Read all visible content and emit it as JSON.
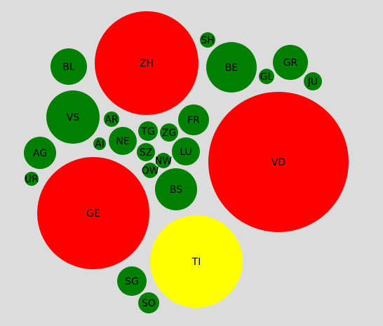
{
  "chart_data": {
    "type": "bubble",
    "title": "",
    "legend": "none",
    "status_colors": {
      "red": "#ff0000",
      "green": "#008000",
      "yellow": "#ffff00"
    },
    "bubbles": [
      {
        "label": "ZH",
        "size": 1,
        "status": "red"
      },
      {
        "label": "VD",
        "size": 1,
        "status": "red"
      },
      {
        "label": "GE",
        "size": 1,
        "status": "red"
      },
      {
        "label": "TI",
        "size": 1,
        "status": "yellow"
      },
      {
        "label": "BE",
        "size": 1,
        "status": "green"
      },
      {
        "label": "BL",
        "size": 1,
        "status": "green"
      },
      {
        "label": "SH",
        "size": 1,
        "status": "green"
      },
      {
        "label": "GR",
        "size": 1,
        "status": "green"
      },
      {
        "label": "GL",
        "size": 1,
        "status": "green"
      },
      {
        "label": "JU",
        "size": 1,
        "status": "green"
      },
      {
        "label": "VS",
        "size": 1,
        "status": "green"
      },
      {
        "label": "AR",
        "size": 1,
        "status": "green"
      },
      {
        "label": "FR",
        "size": 1,
        "status": "green"
      },
      {
        "label": "TG",
        "size": 1,
        "status": "green"
      },
      {
        "label": "ZG",
        "size": 1,
        "status": "green"
      },
      {
        "label": "NE",
        "size": 1,
        "status": "green"
      },
      {
        "label": "AI",
        "size": 1,
        "status": "green"
      },
      {
        "label": "AG",
        "size": 1,
        "status": "green"
      },
      {
        "label": "SZ",
        "size": 1,
        "status": "green"
      },
      {
        "label": "LU",
        "size": 1,
        "status": "green"
      },
      {
        "label": "NW",
        "size": 1,
        "status": "green"
      },
      {
        "label": "OW",
        "size": 1,
        "status": "green"
      },
      {
        "label": "UR",
        "size": 1,
        "status": "green"
      },
      {
        "label": "BS",
        "size": 1,
        "status": "green"
      },
      {
        "label": "SG",
        "size": 1,
        "status": "green"
      },
      {
        "label": "SO",
        "size": 1,
        "status": "green"
      }
    ]
  }
}
